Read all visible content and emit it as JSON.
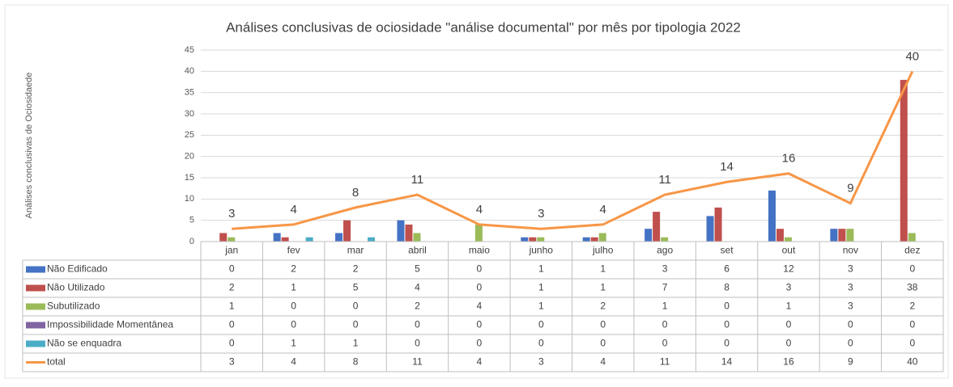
{
  "chart_data": {
    "type": "bar",
    "title": "Análises conclusivas de ociosidade \"análise documental\" por mês por tipologia 2022",
    "y_label": "Análises conclusivas de Ociosidaede",
    "categories": [
      "jan",
      "fev",
      "mar",
      "abril",
      "maio",
      "junho",
      "julho",
      "ago",
      "set",
      "out",
      "nov",
      "dez"
    ],
    "series": [
      {
        "name": "Não Edificado",
        "color": "#4472c4",
        "values": [
          0,
          2,
          2,
          5,
          0,
          1,
          1,
          3,
          6,
          12,
          3,
          0
        ]
      },
      {
        "name": "Não Utilizado",
        "color": "#c0504d",
        "values": [
          2,
          1,
          5,
          4,
          0,
          1,
          1,
          7,
          8,
          3,
          3,
          38
        ]
      },
      {
        "name": "Subutilizado",
        "color": "#9bbb59",
        "values": [
          1,
          0,
          0,
          2,
          4,
          1,
          2,
          1,
          0,
          1,
          3,
          2
        ]
      },
      {
        "name": "Impossibilidade Momentânea",
        "color": "#8064a2",
        "values": [
          0,
          0,
          0,
          0,
          0,
          0,
          0,
          0,
          0,
          0,
          0,
          0
        ]
      },
      {
        "name": "Não se enquadra",
        "color": "#4bacc6",
        "values": [
          0,
          1,
          1,
          0,
          0,
          0,
          0,
          0,
          0,
          0,
          0,
          0
        ]
      },
      {
        "name": "total",
        "color": "#f79646",
        "type": "line",
        "values": [
          3,
          4,
          8,
          11,
          4,
          3,
          4,
          11,
          14,
          16,
          9,
          40
        ]
      }
    ],
    "ylim": [
      0,
      45
    ],
    "yticks": [
      0,
      5,
      10,
      15,
      20,
      25,
      30,
      35,
      40,
      45
    ],
    "grid": true,
    "data_table": true
  }
}
